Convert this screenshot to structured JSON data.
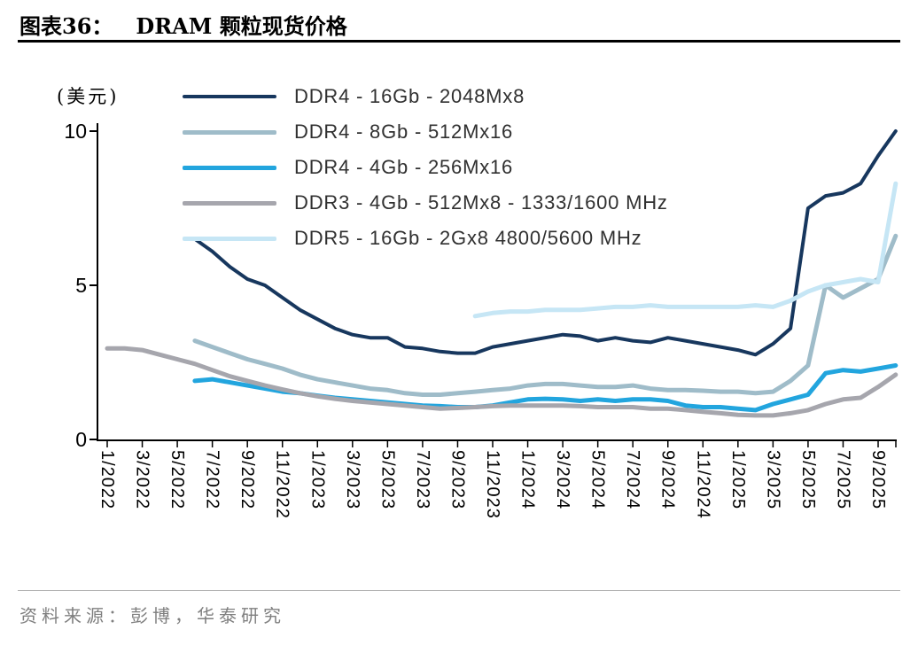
{
  "header": {
    "figure_label": "图表36：",
    "title": "DRAM 颗粒现货价格"
  },
  "footer": {
    "source": "资料来源：彭博，华泰研究"
  },
  "chart_data": {
    "type": "line",
    "title": "DRAM 颗粒现货价格",
    "ylabel": "(美元)",
    "ylim": [
      0,
      10
    ],
    "yticks": [
      0,
      5,
      10
    ],
    "grid": false,
    "legend_position": "top-left-inside",
    "x_unit": "month",
    "x_range_note": "monthly points from 1/2022 to 10/2025, tick labels every 2 months",
    "x_tick_labels": [
      "1/2022",
      "3/2022",
      "5/2022",
      "7/2022",
      "9/2022",
      "11/2022",
      "1/2023",
      "3/2023",
      "5/2023",
      "7/2023",
      "9/2023",
      "11/2023",
      "1/2024",
      "3/2024",
      "5/2024",
      "7/2024",
      "9/2024",
      "11/2024",
      "1/2025",
      "3/2025",
      "5/2025",
      "7/2025",
      "9/2025"
    ],
    "series": [
      {
        "name": "DDR4 - 16Gb - 2048Mx8",
        "color": "#17375E",
        "stroke_width": 4,
        "values": [
          null,
          null,
          null,
          null,
          null,
          6.5,
          6.1,
          5.6,
          5.2,
          5.0,
          4.6,
          4.2,
          3.9,
          3.6,
          3.4,
          3.3,
          3.3,
          3.0,
          2.95,
          2.85,
          2.8,
          2.8,
          3.0,
          3.1,
          3.2,
          3.3,
          3.4,
          3.35,
          3.2,
          3.3,
          3.2,
          3.15,
          3.3,
          3.2,
          3.1,
          3.0,
          2.9,
          2.75,
          3.1,
          3.6,
          7.5,
          7.9,
          8.0,
          8.3,
          9.2,
          10.0
        ]
      },
      {
        "name": "DDR4 - 8Gb - 512Mx16",
        "color": "#9FBCC9",
        "stroke_width": 5,
        "values": [
          null,
          null,
          null,
          null,
          null,
          3.2,
          3.0,
          2.8,
          2.6,
          2.45,
          2.3,
          2.1,
          1.95,
          1.85,
          1.75,
          1.65,
          1.6,
          1.5,
          1.45,
          1.45,
          1.5,
          1.55,
          1.6,
          1.65,
          1.75,
          1.8,
          1.8,
          1.75,
          1.7,
          1.7,
          1.75,
          1.65,
          1.6,
          1.6,
          1.58,
          1.55,
          1.55,
          1.5,
          1.55,
          1.9,
          2.4,
          5.0,
          4.6,
          4.9,
          5.2,
          6.6
        ]
      },
      {
        "name": "DDR4 - 4Gb - 256Mx16",
        "color": "#22A5DE",
        "stroke_width": 5,
        "values": [
          null,
          null,
          null,
          null,
          null,
          1.9,
          1.95,
          1.85,
          1.75,
          1.65,
          1.55,
          1.5,
          1.42,
          1.35,
          1.3,
          1.25,
          1.2,
          1.15,
          1.1,
          1.08,
          1.05,
          1.05,
          1.1,
          1.2,
          1.3,
          1.32,
          1.3,
          1.25,
          1.3,
          1.25,
          1.3,
          1.3,
          1.25,
          1.1,
          1.05,
          1.05,
          1.0,
          0.95,
          1.15,
          1.3,
          1.45,
          2.15,
          2.25,
          2.2,
          2.3,
          2.4
        ]
      },
      {
        "name": "DDR3 - 4Gb - 512Mx8 - 1333/1600 MHz",
        "color": "#A6A6AD",
        "stroke_width": 5,
        "values": [
          2.95,
          2.95,
          2.9,
          2.75,
          2.6,
          2.45,
          2.25,
          2.05,
          1.9,
          1.75,
          1.62,
          1.5,
          1.4,
          1.32,
          1.25,
          1.2,
          1.15,
          1.1,
          1.05,
          1.0,
          1.02,
          1.05,
          1.08,
          1.1,
          1.1,
          1.1,
          1.1,
          1.08,
          1.05,
          1.05,
          1.05,
          1.0,
          1.0,
          0.95,
          0.9,
          0.85,
          0.8,
          0.78,
          0.78,
          0.85,
          0.95,
          1.15,
          1.3,
          1.35,
          1.7,
          2.1
        ]
      },
      {
        "name": "DDR5 - 16Gb - 2Gx8 4800/5600 MHz",
        "color": "#C6E6F5",
        "stroke_width": 5,
        "values": [
          null,
          null,
          null,
          null,
          null,
          null,
          null,
          null,
          null,
          null,
          null,
          null,
          null,
          null,
          null,
          null,
          null,
          null,
          null,
          null,
          null,
          4.0,
          4.1,
          4.15,
          4.15,
          4.2,
          4.2,
          4.2,
          4.25,
          4.3,
          4.3,
          4.35,
          4.3,
          4.3,
          4.3,
          4.3,
          4.3,
          4.35,
          4.3,
          4.5,
          4.8,
          5.0,
          5.1,
          5.2,
          5.1,
          8.3
        ]
      }
    ]
  }
}
